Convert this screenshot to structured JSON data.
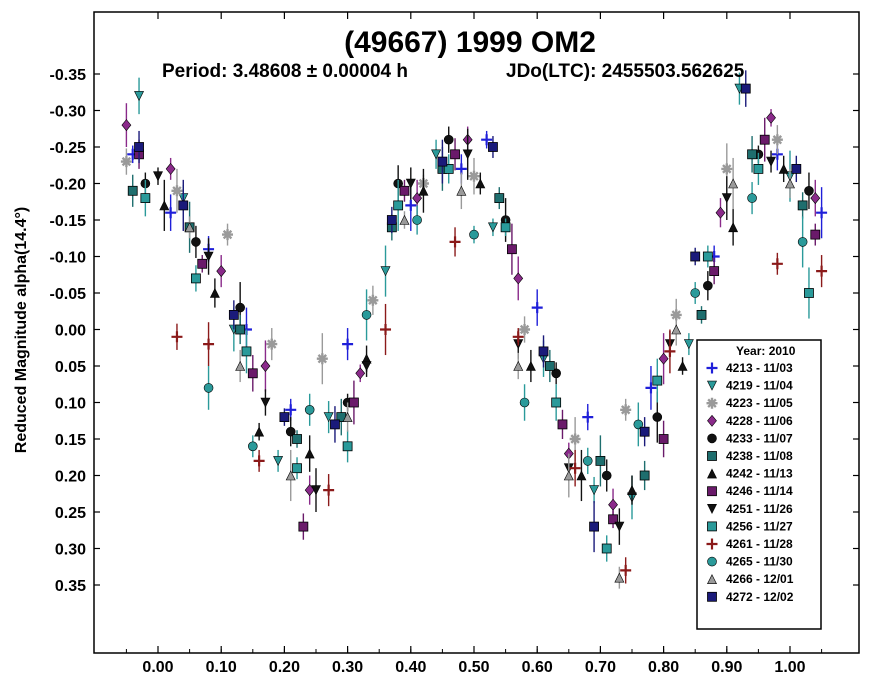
{
  "chart_data": {
    "type": "scatter",
    "title": "(49667) 1999 OM2",
    "subtitle": {
      "period": "Period: 3.48608 ± 0.00004 h",
      "epoch": "JDo(LTC): 2455503.562625"
    },
    "xlabel": "",
    "ylabel": "Reduced Magnitude alpha(14.4°)",
    "xlim": [
      -0.1,
      1.1
    ],
    "ylim": [
      0.45,
      -0.4
    ],
    "x_ticks": [
      0.0,
      0.1,
      0.2,
      0.3,
      0.4,
      0.5,
      0.6,
      0.7,
      0.8,
      0.9,
      1.0
    ],
    "x_tick_labels": [
      "0.00",
      "0.10",
      "0.20",
      "0.30",
      "0.40",
      "0.50",
      "0.60",
      "0.70",
      "0.80",
      "0.90",
      "1.00"
    ],
    "y_ticks": [
      -0.35,
      -0.3,
      -0.25,
      -0.2,
      -0.15,
      -0.1,
      -0.05,
      0.0,
      0.05,
      0.1,
      0.15,
      0.2,
      0.25,
      0.3,
      0.35
    ],
    "y_tick_labels": [
      "-0.35",
      "-0.30",
      "-0.25",
      "-0.20",
      "-0.15",
      "-0.10",
      "-0.05",
      "0.00",
      "0.05",
      "0.10",
      "0.15",
      "0.20",
      "0.25",
      "0.30",
      "0.35"
    ],
    "grid": false,
    "legend": {
      "title": "Year: 2010",
      "placement": "bottom-right",
      "entries": [
        {
          "label": "4213 - 11/03",
          "marker": "plus",
          "color": "#1f1fd9"
        },
        {
          "label": "4219 - 11/04",
          "marker": "triangle-down",
          "color": "#2a9a9a"
        },
        {
          "label": "4223 - 11/05",
          "marker": "asterisk",
          "color": "#9a9a9a"
        },
        {
          "label": "4228 - 11/06",
          "marker": "diamond",
          "color": "#8a2a8a"
        },
        {
          "label": "4233 - 11/07",
          "marker": "circle",
          "color": "#111111"
        },
        {
          "label": "4238 - 11/08",
          "marker": "square",
          "color": "#1e6e6e"
        },
        {
          "label": "4242 - 11/13",
          "marker": "triangle-up",
          "color": "#111111"
        },
        {
          "label": "4246 - 11/14",
          "marker": "square",
          "color": "#6a1a6a"
        },
        {
          "label": "4251 - 11/26",
          "marker": "triangle-down",
          "color": "#111111"
        },
        {
          "label": "4256 - 11/27",
          "marker": "square",
          "color": "#2a9a9a"
        },
        {
          "label": "4261 - 11/28",
          "marker": "plus",
          "color": "#8b1a1a"
        },
        {
          "label": "4265 - 11/30",
          "marker": "circle",
          "color": "#2a9a9a"
        },
        {
          "label": "4266 - 12/01",
          "marker": "triangle-up",
          "color": "#9a9a9a"
        },
        {
          "label": "4272 - 12/02",
          "marker": "square",
          "color": "#1a1a7a"
        }
      ]
    },
    "series": [
      {
        "name": "4213 - 11/03",
        "x": [
          -0.04,
          0.02,
          0.08,
          0.14,
          0.21,
          0.3,
          0.4,
          0.48,
          0.52,
          0.6,
          0.68,
          0.78,
          0.88,
          0.98,
          1.05
        ],
        "y": [
          -0.24,
          -0.16,
          -0.11,
          0.0,
          0.11,
          0.02,
          -0.17,
          -0.22,
          -0.26,
          -0.03,
          0.12,
          0.08,
          -0.1,
          -0.24,
          -0.16
        ]
      },
      {
        "name": "4219 - 11/04",
        "x": [
          -0.03,
          0.04,
          0.12,
          0.19,
          0.27,
          0.36,
          0.44,
          0.53,
          0.61,
          0.69,
          0.75,
          0.84,
          0.92,
          1.0
        ],
        "y": [
          -0.32,
          -0.18,
          0.0,
          0.18,
          0.12,
          -0.08,
          -0.24,
          -0.14,
          0.04,
          0.22,
          0.23,
          0.02,
          -0.33,
          -0.21
        ]
      },
      {
        "name": "4223 - 11/05",
        "x": [
          -0.05,
          0.03,
          0.11,
          0.18,
          0.26,
          0.34,
          0.42,
          0.5,
          0.58,
          0.66,
          0.74,
          0.82,
          0.9,
          0.98
        ],
        "y": [
          -0.23,
          -0.19,
          -0.13,
          0.02,
          0.04,
          -0.04,
          -0.2,
          -0.21,
          0.0,
          0.15,
          0.11,
          -0.02,
          -0.22,
          -0.26
        ]
      },
      {
        "name": "4228 - 11/06",
        "x": [
          -0.05,
          0.02,
          0.1,
          0.17,
          0.24,
          0.32,
          0.41,
          0.49,
          0.57,
          0.65,
          0.72,
          0.8,
          0.89,
          0.97,
          1.04
        ],
        "y": [
          -0.28,
          -0.22,
          -0.08,
          0.05,
          0.22,
          0.06,
          -0.18,
          -0.26,
          -0.07,
          0.17,
          0.24,
          0.04,
          -0.16,
          -0.29,
          -0.18
        ]
      },
      {
        "name": "4233 - 11/07",
        "x": [
          -0.02,
          0.06,
          0.13,
          0.21,
          0.3,
          0.38,
          0.46,
          0.55,
          0.63,
          0.71,
          0.79,
          0.87,
          0.95,
          1.03
        ],
        "y": [
          -0.2,
          -0.12,
          -0.03,
          0.14,
          0.1,
          -0.2,
          -0.26,
          -0.15,
          0.06,
          0.2,
          0.12,
          -0.06,
          -0.24,
          -0.19
        ]
      },
      {
        "name": "4238 - 11/08",
        "x": [
          -0.04,
          0.05,
          0.13,
          0.22,
          0.29,
          0.37,
          0.45,
          0.54,
          0.62,
          0.7,
          0.77,
          0.86,
          0.94,
          1.02
        ],
        "y": [
          -0.19,
          -0.14,
          0.0,
          0.15,
          0.12,
          -0.14,
          -0.22,
          -0.18,
          0.05,
          0.18,
          0.2,
          -0.02,
          -0.24,
          -0.17
        ]
      },
      {
        "name": "4242 - 11/13",
        "x": [
          0.01,
          0.09,
          0.16,
          0.24,
          0.33,
          0.42,
          0.51,
          0.59,
          0.67,
          0.75,
          0.83,
          0.91,
          0.99
        ],
        "y": [
          -0.17,
          -0.05,
          0.14,
          0.17,
          0.04,
          -0.19,
          -0.2,
          0.05,
          0.2,
          0.22,
          0.05,
          -0.14,
          -0.22
        ]
      },
      {
        "name": "4246 - 11/14",
        "x": [
          -0.03,
          0.07,
          0.15,
          0.23,
          0.31,
          0.39,
          0.47,
          0.56,
          0.64,
          0.72,
          0.8,
          0.88,
          0.96,
          1.04
        ],
        "y": [
          -0.24,
          -0.09,
          0.06,
          0.27,
          0.1,
          -0.19,
          -0.24,
          -0.11,
          0.13,
          0.26,
          0.15,
          -0.08,
          -0.26,
          -0.13
        ]
      },
      {
        "name": "4251 - 11/26",
        "x": [
          0.0,
          0.08,
          0.17,
          0.25,
          0.33,
          0.4,
          0.49,
          0.57,
          0.65,
          0.73,
          0.81,
          0.9,
          0.97
        ],
        "y": [
          -0.21,
          -0.1,
          0.1,
          0.22,
          0.05,
          -0.2,
          -0.24,
          0.02,
          0.19,
          0.27,
          0.02,
          -0.18,
          -0.23
        ]
      },
      {
        "name": "4256 - 11/27",
        "x": [
          -0.02,
          0.06,
          0.14,
          0.22,
          0.3,
          0.38,
          0.46,
          0.55,
          0.63,
          0.71,
          0.79,
          0.87,
          0.95,
          1.03
        ],
        "y": [
          -0.18,
          -0.07,
          0.03,
          0.19,
          0.16,
          -0.17,
          -0.22,
          -0.14,
          0.1,
          0.3,
          0.07,
          -0.1,
          -0.22,
          -0.05
        ]
      },
      {
        "name": "4261 - 11/28",
        "x": [
          0.03,
          0.08,
          0.16,
          0.27,
          0.36,
          0.47,
          0.57,
          0.66,
          0.74,
          0.81,
          0.98,
          1.05
        ],
        "y": [
          0.01,
          0.02,
          0.18,
          0.22,
          0.0,
          -0.12,
          0.01,
          0.19,
          0.33,
          0.03,
          -0.09,
          -0.08
        ]
      },
      {
        "name": "4265 - 11/30",
        "x": [
          0.08,
          0.15,
          0.24,
          0.33,
          0.41,
          0.5,
          0.58,
          0.68,
          0.76,
          0.85,
          0.94,
          1.02
        ],
        "y": [
          0.08,
          0.16,
          0.11,
          -0.02,
          -0.15,
          -0.13,
          0.1,
          0.18,
          0.13,
          -0.05,
          -0.18,
          -0.12
        ]
      },
      {
        "name": "4266 - 12/01",
        "x": [
          0.05,
          0.13,
          0.21,
          0.3,
          0.39,
          0.48,
          0.57,
          0.65,
          0.73,
          0.82,
          0.91,
          1.0
        ],
        "y": [
          -0.14,
          0.05,
          0.2,
          0.12,
          -0.15,
          -0.19,
          0.05,
          0.2,
          0.34,
          0.0,
          -0.2,
          -0.2
        ]
      },
      {
        "name": "4272 - 12/02",
        "x": [
          -0.03,
          0.04,
          0.12,
          0.2,
          0.28,
          0.37,
          0.45,
          0.53,
          0.61,
          0.69,
          0.77,
          0.85,
          0.93,
          1.01
        ],
        "y": [
          -0.25,
          -0.17,
          -0.02,
          0.12,
          0.13,
          -0.15,
          -0.23,
          -0.25,
          0.03,
          0.27,
          0.14,
          -0.1,
          -0.33,
          -0.22
        ]
      }
    ]
  }
}
